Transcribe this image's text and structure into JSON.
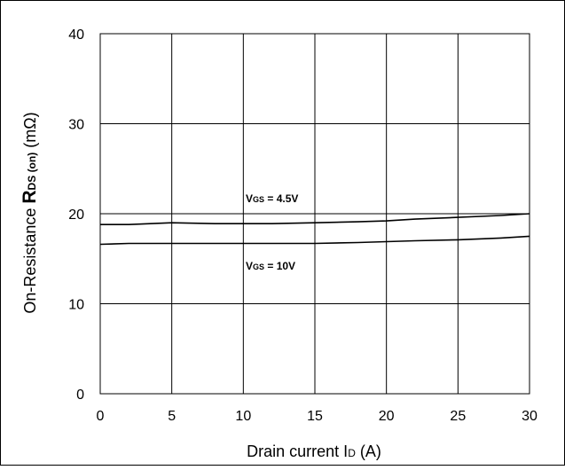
{
  "chart_data": {
    "type": "line",
    "title": "",
    "xlabel": "Drain current I",
    "xlabel_sub": "D",
    "xlabel_unit": " (A)",
    "ylabel_prefix": "On-Resistance  ",
    "ylabel_symbol": "R",
    "ylabel_sub": "DS (on)",
    "ylabel_unit": " (mΩ)",
    "xlim": [
      0,
      30
    ],
    "ylim": [
      0,
      40
    ],
    "x_ticks": [
      0,
      5,
      10,
      15,
      20,
      25,
      30
    ],
    "y_ticks": [
      0,
      10,
      20,
      30,
      40
    ],
    "grid": true,
    "series": [
      {
        "name_symbol": "V",
        "name_sub": "GS",
        "name_value": " = 4.5V",
        "x": [
          0,
          2,
          5,
          8,
          10,
          12,
          15,
          18,
          20,
          22,
          25,
          28,
          30
        ],
        "values": [
          18.8,
          18.8,
          19.0,
          18.9,
          18.9,
          18.9,
          19.0,
          19.1,
          19.2,
          19.4,
          19.6,
          19.8,
          20.0
        ]
      },
      {
        "name_symbol": "V",
        "name_sub": "GS",
        "name_value": " = 10V",
        "x": [
          0,
          2,
          5,
          8,
          10,
          12,
          15,
          18,
          20,
          22,
          25,
          28,
          30
        ],
        "values": [
          16.6,
          16.7,
          16.7,
          16.7,
          16.7,
          16.7,
          16.7,
          16.8,
          16.9,
          17.0,
          17.1,
          17.3,
          17.5
        ]
      }
    ]
  }
}
